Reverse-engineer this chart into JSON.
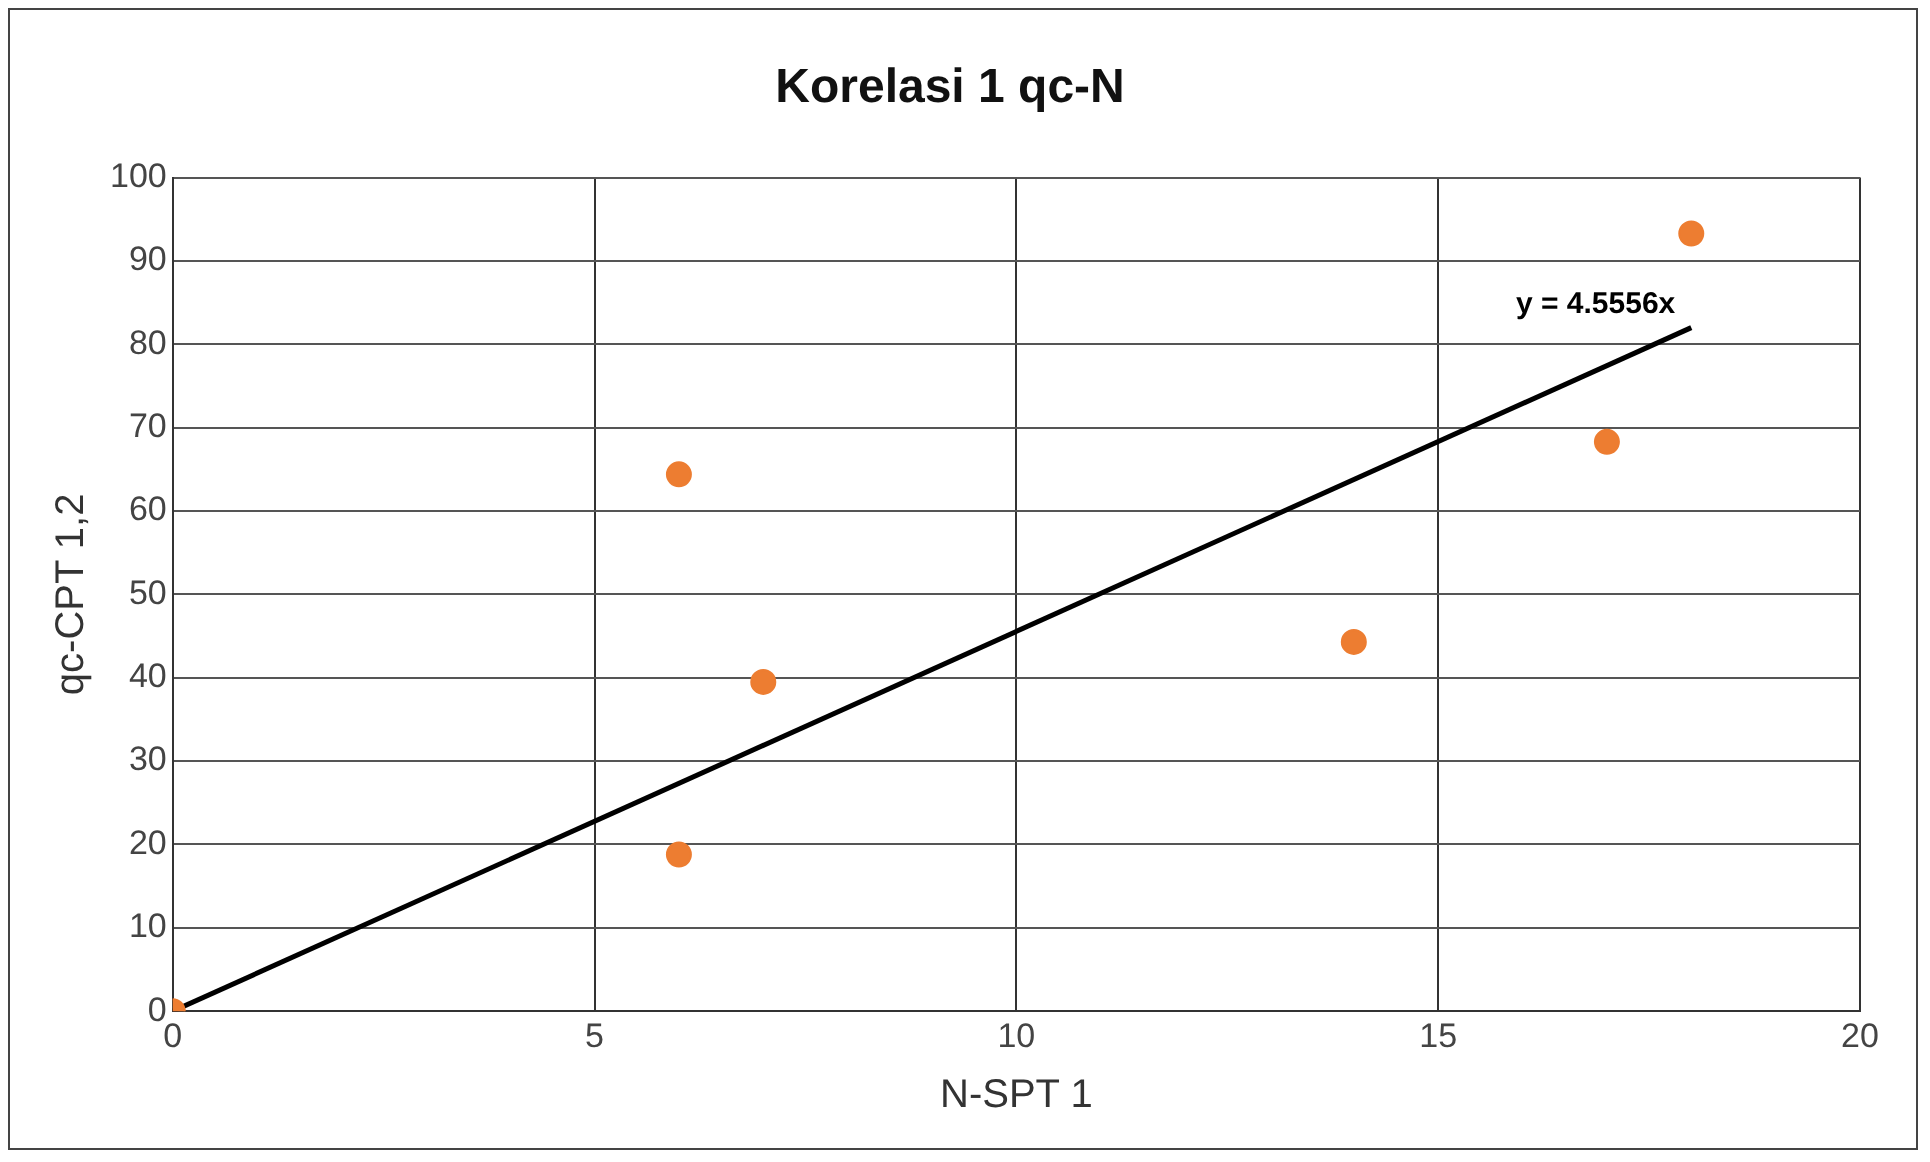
{
  "chart_data": {
    "type": "scatter",
    "title": "Korelasi 1 qc-N",
    "xlabel": "N-SPT 1",
    "ylabel": "qc-CPT 1,2",
    "xlim": [
      0,
      20
    ],
    "xticks": [
      0,
      5,
      10,
      15,
      20
    ],
    "ylim": [
      0,
      100
    ],
    "yticks": [
      0,
      10,
      20,
      30,
      40,
      50,
      60,
      70,
      80,
      90,
      100
    ],
    "grid": true,
    "legend": false,
    "marker": "circle",
    "series": [
      {
        "type": "scatter",
        "color": "#ed7d31",
        "x": [
          0,
          6,
          6,
          7,
          14,
          17,
          18
        ],
        "values": [
          0,
          64.4,
          18.8,
          39.5,
          44.3,
          68.3,
          93.3
        ]
      },
      {
        "type": "line",
        "color": "#000000",
        "x": [
          0,
          18
        ],
        "values": [
          0,
          82.0
        ],
        "marker": "none",
        "line_style": "solid"
      }
    ],
    "annotations": [
      {
        "text": "y = 4.5556x",
        "x": 18,
        "y": 82.0
      }
    ]
  }
}
